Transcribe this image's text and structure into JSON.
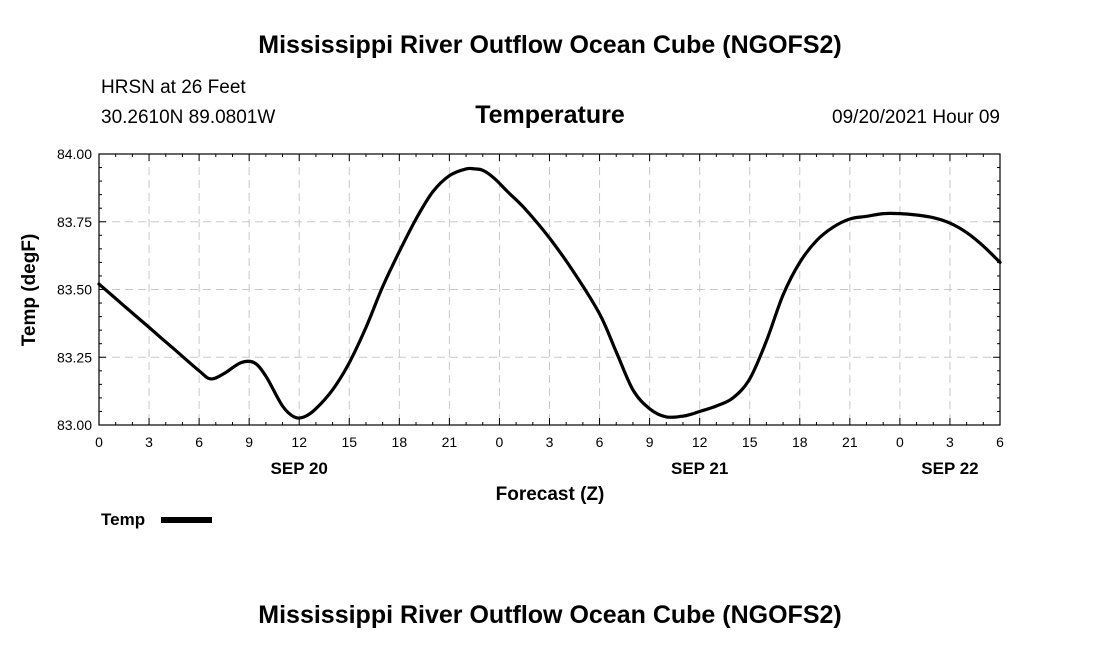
{
  "page": {
    "title_top": "Mississippi River Outflow Ocean Cube (NGOFS2)",
    "title_bottom": "Mississippi River Outflow Ocean Cube (NGOFS2)",
    "station": "HRSN at 26 Feet",
    "coords": "30.2610N  89.0801W",
    "datetime": "09/20/2021 Hour 09",
    "legend_label": "Temp"
  },
  "chart_data": {
    "type": "line",
    "title": "Temperature",
    "xlabel": "Forecast (Z)",
    "ylabel": "Temp (degF)",
    "xlim": [
      0,
      54
    ],
    "ylim": [
      83.0,
      84.0
    ],
    "x_ticks": [
      0,
      3,
      6,
      9,
      12,
      15,
      18,
      21,
      24,
      27,
      30,
      33,
      36,
      39,
      42,
      45,
      48,
      51,
      54
    ],
    "x_tick_labels": [
      "0",
      "3",
      "6",
      "9",
      "12",
      "15",
      "18",
      "21",
      "0",
      "3",
      "6",
      "9",
      "12",
      "15",
      "18",
      "21",
      "0",
      "3",
      "6"
    ],
    "date_labels": [
      {
        "x": 12,
        "label": "SEP 20"
      },
      {
        "x": 36,
        "label": "SEP 21"
      },
      {
        "x": 51,
        "label": "SEP 22"
      }
    ],
    "y_ticks": [
      83.0,
      83.25,
      83.5,
      83.75,
      84.0
    ],
    "y_tick_labels": [
      "83.00",
      "83.25",
      "83.50",
      "83.75",
      "84.00"
    ],
    "grid": true,
    "legend_position": "bottom-left",
    "series": [
      {
        "name": "Temp",
        "color": "#000000",
        "x": [
          0,
          1.5,
          3,
          4.5,
          6,
          6.7,
          7.5,
          8.5,
          9.3,
          10,
          11,
          11.7,
          12.3,
          13,
          14,
          15,
          16,
          17,
          18,
          19,
          20,
          21,
          22,
          22.5,
          23,
          23.7,
          24.5,
          25.5,
          27,
          28.5,
          30,
          31,
          32,
          33,
          34,
          35,
          35.5,
          36,
          37,
          38,
          39,
          40,
          41,
          42,
          43,
          44,
          45,
          46,
          47,
          48,
          49,
          50,
          51,
          52,
          53,
          54
        ],
        "values": [
          83.52,
          83.44,
          83.36,
          83.28,
          83.2,
          83.17,
          83.19,
          83.23,
          83.23,
          83.18,
          83.07,
          83.03,
          83.03,
          83.06,
          83.13,
          83.23,
          83.36,
          83.51,
          83.64,
          83.76,
          83.86,
          83.92,
          83.945,
          83.945,
          83.94,
          83.91,
          83.86,
          83.8,
          83.69,
          83.56,
          83.41,
          83.27,
          83.13,
          83.06,
          83.03,
          83.033,
          83.04,
          83.05,
          83.07,
          83.1,
          83.17,
          83.31,
          83.48,
          83.6,
          83.68,
          83.73,
          83.76,
          83.77,
          83.78,
          83.78,
          83.775,
          83.765,
          83.745,
          83.71,
          83.66,
          83.6
        ]
      }
    ]
  }
}
